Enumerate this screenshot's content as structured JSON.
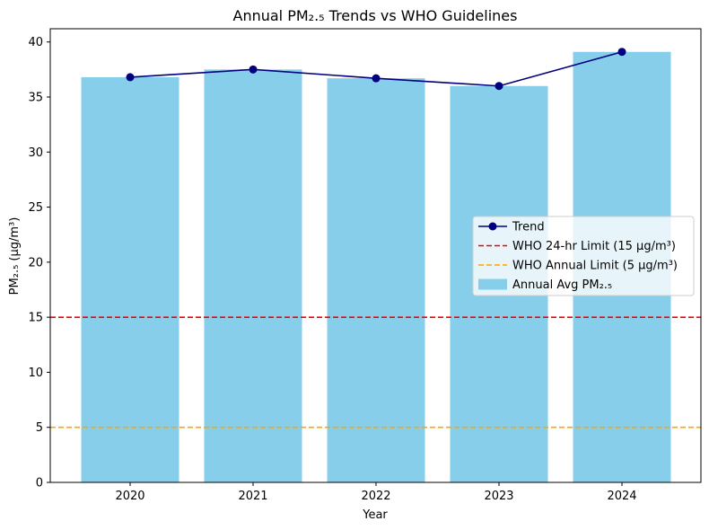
{
  "chart_data": {
    "type": "bar",
    "title": "Annual PM₂.₅ Trends vs WHO Guidelines",
    "xlabel": "Year",
    "ylabel": "PM₂.₅ (µg/m³)",
    "categories": [
      "2020",
      "2021",
      "2022",
      "2023",
      "2024"
    ],
    "ylim": [
      0,
      41.2
    ],
    "yticks": [
      0,
      5,
      10,
      15,
      20,
      25,
      30,
      35,
      40
    ],
    "grid": false,
    "legend_position": "center-right",
    "series": [
      {
        "name": "Annual Avg PM₂.₅",
        "kind": "bar",
        "values": [
          36.8,
          37.5,
          36.7,
          36.0,
          39.1
        ],
        "color": "#87ceeb"
      },
      {
        "name": "Trend",
        "kind": "line",
        "values": [
          36.8,
          37.5,
          36.7,
          36.0,
          39.1
        ],
        "color": "#000080",
        "marker": "circle"
      }
    ],
    "reference_lines": [
      {
        "name": "WHO 24-hr Limit (15 µg/m³)",
        "value": 15,
        "color": "#ff0000",
        "style": "dashed"
      },
      {
        "name": "WHO Annual Limit (5 µg/m³)",
        "value": 5,
        "color": "#ffa500",
        "style": "dashed"
      }
    ],
    "legend_order": [
      "Trend",
      "WHO 24-hr Limit (15 µg/m³)",
      "WHO Annual Limit (5 µg/m³)",
      "Annual Avg PM₂.₅"
    ]
  }
}
